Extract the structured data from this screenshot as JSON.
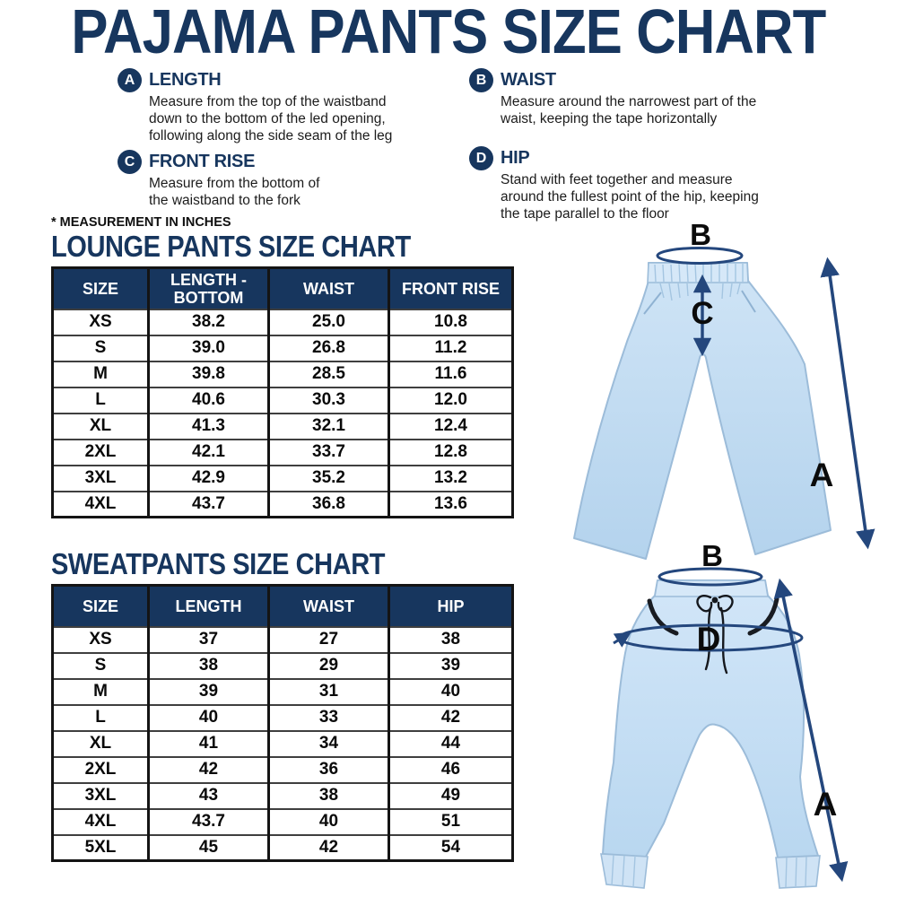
{
  "title": "PAJAMA PANTS SIZE CHART",
  "measurement_note": "* MEASUREMENT IN INCHES",
  "definitions": [
    {
      "letter": "A",
      "term": "LENGTH",
      "description": "Measure from the top of the waistband down to the bottom of the led opening, following along the side seam of the leg"
    },
    {
      "letter": "B",
      "term": "WAIST",
      "description": "Measure around the narrowest part of the waist, keeping the tape horizontally"
    },
    {
      "letter": "C",
      "term": "FRONT RISE",
      "description": "Measure from the bottom of the waistband to the fork"
    },
    {
      "letter": "D",
      "term": "HIP",
      "description": "Stand with feet together and measure around the fullest point of the hip, keeping the tape parallel to the floor"
    }
  ],
  "lounge_table": {
    "title": "LOUNGE PANTS SIZE CHART",
    "headers": [
      "SIZE",
      "LENGTH - BOTTOM",
      "WAIST",
      "FRONT RISE"
    ],
    "rows": [
      [
        "XS",
        "38.2",
        "25.0",
        "10.8"
      ],
      [
        "S",
        "39.0",
        "26.8",
        "11.2"
      ],
      [
        "M",
        "39.8",
        "28.5",
        "11.6"
      ],
      [
        "L",
        "40.6",
        "30.3",
        "12.0"
      ],
      [
        "XL",
        "41.3",
        "32.1",
        "12.4"
      ],
      [
        "2XL",
        "42.1",
        "33.7",
        "12.8"
      ],
      [
        "3XL",
        "42.9",
        "35.2",
        "13.2"
      ],
      [
        "4XL",
        "43.7",
        "36.8",
        "13.6"
      ]
    ]
  },
  "sweatpants_table": {
    "title": "SWEATPANTS SIZE CHART",
    "headers": [
      "SIZE",
      "LENGTH",
      "WAIST",
      "HIP"
    ],
    "rows": [
      [
        "XS",
        "37",
        "27",
        "38"
      ],
      [
        "S",
        "38",
        "29",
        "39"
      ],
      [
        "M",
        "39",
        "31",
        "40"
      ],
      [
        "L",
        "40",
        "33",
        "42"
      ],
      [
        "XL",
        "41",
        "34",
        "44"
      ],
      [
        "2XL",
        "42",
        "36",
        "46"
      ],
      [
        "3XL",
        "43",
        "38",
        "49"
      ],
      [
        "4XL",
        "43.7",
        "40",
        "51"
      ],
      [
        "5XL",
        "45",
        "42",
        "54"
      ]
    ]
  },
  "diagrams": {
    "lounge_pants": {
      "waist_label": "B",
      "front_rise_label": "C",
      "length_label": "A"
    },
    "sweatpants": {
      "waist_label": "B",
      "hip_label": "D",
      "length_label": "A"
    }
  },
  "colors": {
    "navy": "#17365E",
    "arrow": "#24477D",
    "pants_fill": "#BCD8EF",
    "pants_stroke": "#9CBCD9",
    "band_fill": "#D6E8F8",
    "label_dark": "#0B0B0B",
    "border_dark": "#141414"
  }
}
